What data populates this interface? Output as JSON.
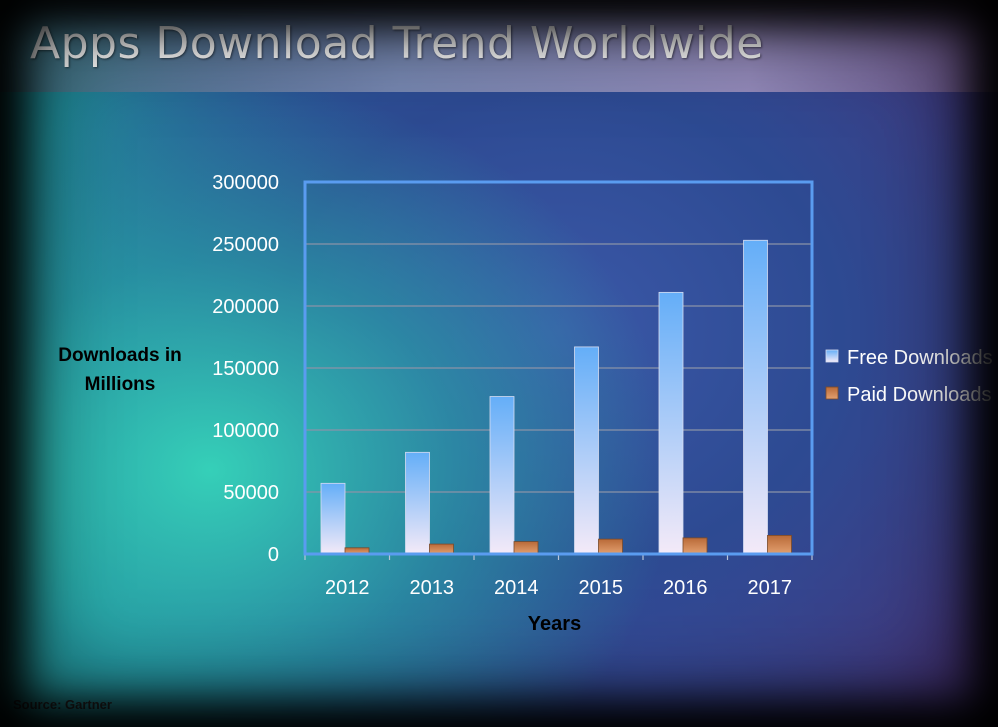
{
  "slide": {
    "title": "Apps Download Trend Worldwide",
    "source": "Source: Gartner"
  },
  "chart_data": {
    "type": "bar",
    "title": "",
    "xlabel": "Years",
    "ylabel": "Downloads in\nMillions",
    "categories": [
      "2012",
      "2013",
      "2014",
      "2015",
      "2016",
      "2017"
    ],
    "series": [
      {
        "name": "Free Downloads",
        "values": [
          57000,
          82000,
          127000,
          167000,
          211000,
          253000
        ]
      },
      {
        "name": "Paid Downloads",
        "values": [
          5000,
          8000,
          10000,
          12000,
          13000,
          15000
        ]
      }
    ],
    "ylim": [
      0,
      300000
    ],
    "yticks": [
      0,
      50000,
      100000,
      150000,
      200000,
      250000,
      300000
    ],
    "grid": true,
    "legend": "right",
    "colors": {
      "free_top": "#64aef8",
      "free_bottom": "#f4eaf8",
      "paid_top": "#b96a38",
      "paid_bottom": "#e3a070",
      "plot_border": "#5a9cf0",
      "gridline": "#8a93a8"
    }
  }
}
